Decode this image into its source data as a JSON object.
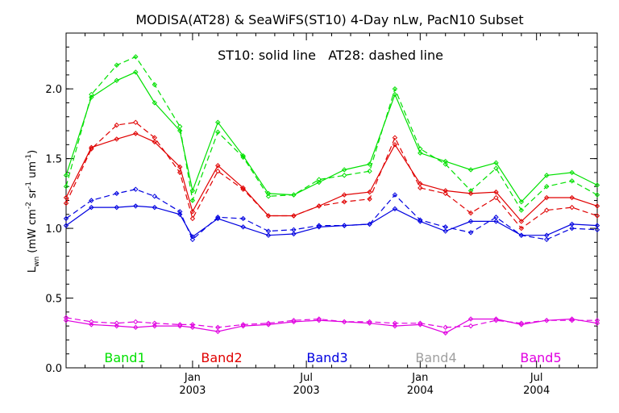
{
  "chart_data": {
    "type": "line",
    "title": "MODISA(AT28) & SeaWiFS(ST10) 4-Day nLw, PacN10 Subset",
    "annotation": "ST10: solid line   AT28: dashed line",
    "ylabel": {
      "base": "L",
      "sub": "wn",
      "text": " (mW cm",
      "e1": "-2",
      "mid1": " sr",
      "e2": "-1",
      "mid2": " um",
      "e3": "-1",
      "end": ")"
    },
    "ylim": [
      0.0,
      2.4
    ],
    "xlim": [
      0,
      21
    ],
    "y_ticks": [
      "0.0",
      "0.5",
      "1.0",
      "1.5",
      "2.0"
    ],
    "x_ticks": [
      {
        "x": 5,
        "label": "Jan",
        "year": "2003"
      },
      {
        "x": 9.5,
        "label": "Jul",
        "year": "2003"
      },
      {
        "x": 14,
        "label": "Jan",
        "year": "2004"
      },
      {
        "x": 18.6,
        "label": "Jul",
        "year": "2004"
      }
    ],
    "x": [
      0,
      1,
      2,
      2.75,
      3.5,
      4.5,
      5,
      6,
      7,
      8,
      9,
      10,
      11,
      12,
      13,
      14,
      15,
      16,
      17,
      18,
      19,
      20,
      21
    ],
    "legend_placement": "bottom, inline",
    "series": [
      {
        "name": "Band1",
        "color": "#00e000",
        "solid": [
          1.38,
          1.94,
          2.06,
          2.12,
          1.9,
          1.7,
          1.27,
          1.76,
          1.52,
          1.25,
          1.24,
          1.33,
          1.42,
          1.46,
          1.96,
          1.54,
          1.48,
          1.42,
          1.47,
          1.19,
          1.38,
          1.4,
          1.31
        ],
        "dashed": [
          1.3,
          1.96,
          2.17,
          2.23,
          2.03,
          1.73,
          1.2,
          1.69,
          1.51,
          1.23,
          1.24,
          1.35,
          1.38,
          1.41,
          2.0,
          1.57,
          1.46,
          1.27,
          1.43,
          1.13,
          1.3,
          1.34,
          1.24
        ]
      },
      {
        "name": "Band2",
        "color": "#e00000",
        "solid": [
          1.22,
          1.58,
          1.64,
          1.68,
          1.62,
          1.44,
          1.12,
          1.45,
          1.29,
          1.09,
          1.09,
          1.16,
          1.24,
          1.26,
          1.6,
          1.32,
          1.27,
          1.25,
          1.26,
          1.05,
          1.22,
          1.22,
          1.16
        ],
        "dashed": [
          1.18,
          1.57,
          1.74,
          1.76,
          1.65,
          1.4,
          1.07,
          1.41,
          1.28,
          1.09,
          1.09,
          1.16,
          1.19,
          1.21,
          1.65,
          1.29,
          1.25,
          1.11,
          1.22,
          1.0,
          1.13,
          1.15,
          1.09
        ]
      },
      {
        "name": "Band3",
        "color": "#0000e0",
        "solid": [
          1.02,
          1.15,
          1.15,
          1.16,
          1.15,
          1.1,
          0.94,
          1.07,
          1.01,
          0.95,
          0.96,
          1.01,
          1.02,
          1.03,
          1.14,
          1.05,
          0.98,
          1.05,
          1.05,
          0.95,
          0.95,
          1.03,
          1.02
        ],
        "dashed": [
          1.07,
          1.2,
          1.25,
          1.28,
          1.23,
          1.12,
          0.92,
          1.08,
          1.07,
          0.98,
          0.99,
          1.02,
          1.02,
          1.03,
          1.24,
          1.06,
          1.01,
          0.97,
          1.08,
          0.95,
          0.92,
          1.0,
          0.99
        ]
      },
      {
        "name": "Band4",
        "color": "#a0a0a0",
        "solid": [],
        "dashed": []
      },
      {
        "name": "Band5",
        "color": "#e000e0",
        "solid": [
          0.34,
          0.31,
          0.3,
          0.29,
          0.3,
          0.3,
          0.29,
          0.26,
          0.3,
          0.31,
          0.33,
          0.34,
          0.33,
          0.32,
          0.3,
          0.31,
          0.25,
          0.35,
          0.35,
          0.31,
          0.34,
          0.35,
          0.32
        ],
        "dashed": [
          0.36,
          0.33,
          0.32,
          0.33,
          0.32,
          0.31,
          0.31,
          0.29,
          0.31,
          0.32,
          0.34,
          0.35,
          0.33,
          0.33,
          0.32,
          0.32,
          0.29,
          0.3,
          0.34,
          0.32,
          0.34,
          0.34,
          0.34
        ]
      }
    ]
  }
}
